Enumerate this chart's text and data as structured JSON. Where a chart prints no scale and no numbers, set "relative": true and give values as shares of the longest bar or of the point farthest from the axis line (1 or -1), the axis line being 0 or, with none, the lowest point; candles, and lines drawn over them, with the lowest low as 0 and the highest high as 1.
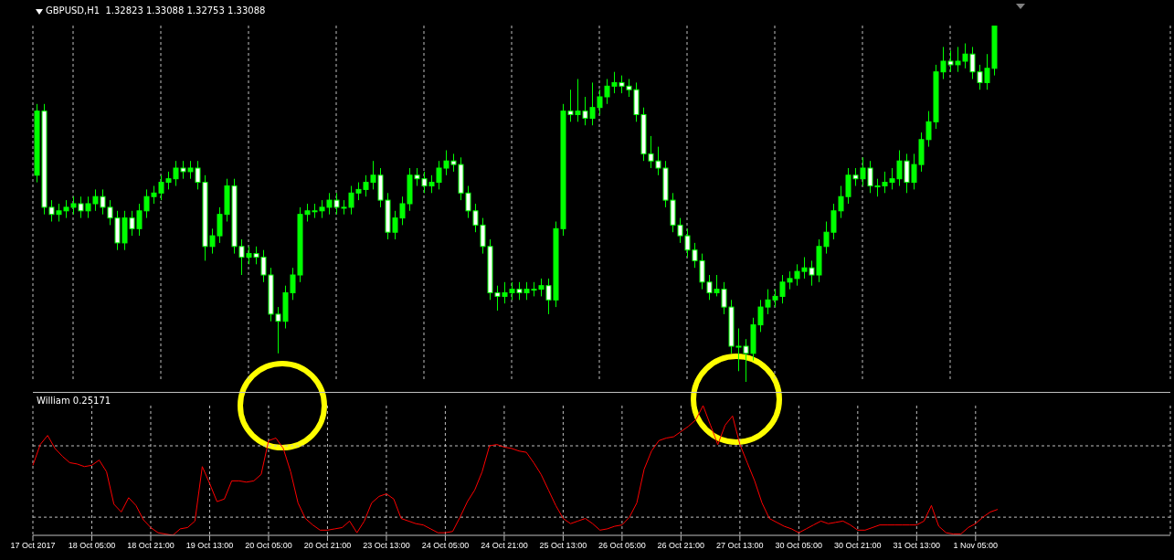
{
  "chart_data": [
    {
      "type": "candlestick",
      "title": "GBPUSD,H1  1.32823 1.33088 1.32753 1.33088",
      "relative": true,
      "grid": "x",
      "tick_labels": false,
      "color": "#00ff00",
      "categories": [
        null,
        null,
        null,
        null,
        null,
        null,
        null,
        null,
        null,
        null,
        null,
        null,
        null,
        null,
        null,
        null,
        null,
        null,
        null,
        null,
        null,
        null,
        null,
        null,
        null,
        null,
        null,
        null,
        null,
        null,
        null,
        null,
        null,
        null,
        null,
        null,
        null,
        null,
        null,
        null,
        null,
        null,
        null,
        null,
        null,
        null,
        null,
        null,
        null,
        null,
        null,
        null,
        null,
        null,
        null,
        null,
        null,
        null,
        null,
        null,
        null,
        null,
        null,
        null,
        null,
        null,
        null,
        null,
        null,
        null,
        null,
        null,
        null,
        null,
        null,
        null,
        null,
        null,
        null,
        null,
        null,
        null,
        null,
        null,
        null,
        null,
        null,
        null,
        null,
        null,
        null,
        null,
        null,
        null,
        null,
        null,
        null,
        null,
        null,
        null,
        null,
        null,
        null,
        null,
        null,
        null,
        null,
        null,
        null,
        null,
        null,
        null,
        null,
        null,
        null,
        null,
        null,
        null,
        null,
        null,
        null,
        null,
        null,
        null,
        null,
        null,
        null,
        null,
        null,
        null,
        null,
        null
      ],
      "ohlc": [
        [
          0.58,
          0.78,
          0.56,
          0.76
        ],
        [
          0.76,
          0.78,
          0.47,
          0.49
        ],
        [
          0.49,
          0.51,
          0.45,
          0.47
        ],
        [
          0.47,
          0.5,
          0.45,
          0.48
        ],
        [
          0.48,
          0.51,
          0.46,
          0.49
        ],
        [
          0.49,
          0.52,
          0.47,
          0.5
        ],
        [
          0.5,
          0.52,
          0.46,
          0.48
        ],
        [
          0.48,
          0.52,
          0.46,
          0.5
        ],
        [
          0.5,
          0.54,
          0.48,
          0.52
        ],
        [
          0.52,
          0.54,
          0.47,
          0.49
        ],
        [
          0.49,
          0.51,
          0.44,
          0.46
        ],
        [
          0.46,
          0.48,
          0.37,
          0.39
        ],
        [
          0.39,
          0.48,
          0.37,
          0.46
        ],
        [
          0.46,
          0.48,
          0.41,
          0.43
        ],
        [
          0.43,
          0.5,
          0.41,
          0.48
        ],
        [
          0.48,
          0.54,
          0.46,
          0.52
        ],
        [
          0.52,
          0.55,
          0.5,
          0.53
        ],
        [
          0.53,
          0.58,
          0.51,
          0.56
        ],
        [
          0.56,
          0.59,
          0.54,
          0.57
        ],
        [
          0.57,
          0.62,
          0.55,
          0.6
        ],
        [
          0.6,
          0.62,
          0.57,
          0.59
        ],
        [
          0.59,
          0.62,
          0.57,
          0.6
        ],
        [
          0.6,
          0.62,
          0.54,
          0.56
        ],
        [
          0.56,
          0.58,
          0.34,
          0.38
        ],
        [
          0.38,
          0.43,
          0.36,
          0.41
        ],
        [
          0.41,
          0.49,
          0.39,
          0.47
        ],
        [
          0.47,
          0.57,
          0.45,
          0.55
        ],
        [
          0.55,
          0.57,
          0.36,
          0.38
        ],
        [
          0.38,
          0.4,
          0.3,
          0.35
        ],
        [
          0.35,
          0.38,
          0.33,
          0.36
        ],
        [
          0.36,
          0.38,
          0.33,
          0.35
        ],
        [
          0.35,
          0.37,
          0.28,
          0.3
        ],
        [
          0.3,
          0.32,
          0.17,
          0.19
        ],
        [
          0.19,
          0.21,
          0.08,
          0.17
        ],
        [
          0.17,
          0.27,
          0.15,
          0.25
        ],
        [
          0.25,
          0.32,
          0.23,
          0.3
        ],
        [
          0.3,
          0.49,
          0.28,
          0.47
        ],
        [
          0.47,
          0.5,
          0.45,
          0.48
        ],
        [
          0.48,
          0.5,
          0.46,
          0.48
        ],
        [
          0.48,
          0.51,
          0.46,
          0.49
        ],
        [
          0.49,
          0.53,
          0.47,
          0.51
        ],
        [
          0.51,
          0.53,
          0.47,
          0.49
        ],
        [
          0.49,
          0.51,
          0.47,
          0.49
        ],
        [
          0.49,
          0.55,
          0.47,
          0.53
        ],
        [
          0.53,
          0.56,
          0.51,
          0.54
        ],
        [
          0.54,
          0.58,
          0.52,
          0.56
        ],
        [
          0.56,
          0.62,
          0.54,
          0.58
        ],
        [
          0.58,
          0.6,
          0.49,
          0.51
        ],
        [
          0.51,
          0.53,
          0.4,
          0.42
        ],
        [
          0.42,
          0.48,
          0.4,
          0.46
        ],
        [
          0.46,
          0.52,
          0.44,
          0.5
        ],
        [
          0.5,
          0.6,
          0.48,
          0.58
        ],
        [
          0.58,
          0.6,
          0.55,
          0.57
        ],
        [
          0.57,
          0.59,
          0.53,
          0.55
        ],
        [
          0.55,
          0.58,
          0.53,
          0.56
        ],
        [
          0.56,
          0.62,
          0.54,
          0.6
        ],
        [
          0.6,
          0.65,
          0.58,
          0.62
        ],
        [
          0.62,
          0.64,
          0.59,
          0.61
        ],
        [
          0.61,
          0.63,
          0.51,
          0.53
        ],
        [
          0.53,
          0.55,
          0.46,
          0.48
        ],
        [
          0.48,
          0.5,
          0.42,
          0.44
        ],
        [
          0.44,
          0.46,
          0.36,
          0.38
        ],
        [
          0.38,
          0.4,
          0.23,
          0.25
        ],
        [
          0.25,
          0.27,
          0.2,
          0.24
        ],
        [
          0.24,
          0.28,
          0.22,
          0.25
        ],
        [
          0.25,
          0.28,
          0.23,
          0.26
        ],
        [
          0.26,
          0.28,
          0.23,
          0.25
        ],
        [
          0.25,
          0.28,
          0.23,
          0.26
        ],
        [
          0.26,
          0.28,
          0.24,
          0.26
        ],
        [
          0.26,
          0.29,
          0.24,
          0.27
        ],
        [
          0.27,
          0.29,
          0.19,
          0.23
        ],
        [
          0.23,
          0.45,
          0.21,
          0.43
        ],
        [
          0.43,
          0.78,
          0.41,
          0.76
        ],
        [
          0.76,
          0.82,
          0.73,
          0.75
        ],
        [
          0.75,
          0.85,
          0.73,
          0.76
        ],
        [
          0.76,
          0.8,
          0.72,
          0.74
        ],
        [
          0.74,
          0.84,
          0.72,
          0.77
        ],
        [
          0.77,
          0.82,
          0.75,
          0.8
        ],
        [
          0.8,
          0.85,
          0.78,
          0.83
        ],
        [
          0.83,
          0.87,
          0.81,
          0.84
        ],
        [
          0.84,
          0.86,
          0.81,
          0.83
        ],
        [
          0.83,
          0.85,
          0.8,
          0.82
        ],
        [
          0.82,
          0.84,
          0.73,
          0.75
        ],
        [
          0.75,
          0.77,
          0.62,
          0.64
        ],
        [
          0.64,
          0.69,
          0.6,
          0.62
        ],
        [
          0.62,
          0.66,
          0.58,
          0.6
        ],
        [
          0.6,
          0.62,
          0.49,
          0.51
        ],
        [
          0.51,
          0.53,
          0.42,
          0.44
        ],
        [
          0.44,
          0.46,
          0.39,
          0.41
        ],
        [
          0.41,
          0.43,
          0.35,
          0.37
        ],
        [
          0.37,
          0.39,
          0.32,
          0.34
        ],
        [
          0.34,
          0.36,
          0.26,
          0.28
        ],
        [
          0.28,
          0.3,
          0.23,
          0.25
        ],
        [
          0.25,
          0.3,
          0.24,
          0.26
        ],
        [
          0.26,
          0.28,
          0.19,
          0.21
        ],
        [
          0.21,
          0.23,
          0.08,
          0.1
        ],
        [
          0.1,
          0.15,
          0.03,
          0.1
        ],
        [
          0.1,
          0.12,
          0.0,
          0.08
        ],
        [
          0.08,
          0.18,
          0.06,
          0.16
        ],
        [
          0.16,
          0.23,
          0.14,
          0.21
        ],
        [
          0.21,
          0.26,
          0.19,
          0.23
        ],
        [
          0.23,
          0.26,
          0.21,
          0.24
        ],
        [
          0.24,
          0.3,
          0.22,
          0.28
        ],
        [
          0.28,
          0.31,
          0.26,
          0.29
        ],
        [
          0.29,
          0.33,
          0.27,
          0.31
        ],
        [
          0.31,
          0.35,
          0.29,
          0.32
        ],
        [
          0.32,
          0.34,
          0.27,
          0.3
        ],
        [
          0.3,
          0.4,
          0.28,
          0.38
        ],
        [
          0.38,
          0.45,
          0.36,
          0.42
        ],
        [
          0.42,
          0.5,
          0.4,
          0.48
        ],
        [
          0.48,
          0.55,
          0.46,
          0.52
        ],
        [
          0.52,
          0.6,
          0.5,
          0.58
        ],
        [
          0.58,
          0.6,
          0.55,
          0.57
        ],
        [
          0.57,
          0.63,
          0.55,
          0.6
        ],
        [
          0.6,
          0.62,
          0.53,
          0.55
        ],
        [
          0.55,
          0.57,
          0.52,
          0.55
        ],
        [
          0.55,
          0.59,
          0.53,
          0.56
        ],
        [
          0.56,
          0.6,
          0.54,
          0.57
        ],
        [
          0.57,
          0.65,
          0.55,
          0.62
        ],
        [
          0.62,
          0.64,
          0.53,
          0.56
        ],
        [
          0.56,
          0.64,
          0.54,
          0.61
        ],
        [
          0.61,
          0.7,
          0.59,
          0.68
        ],
        [
          0.68,
          0.76,
          0.66,
          0.73
        ],
        [
          0.73,
          0.89,
          0.71,
          0.87
        ],
        [
          0.87,
          0.94,
          0.85,
          0.9
        ],
        [
          0.9,
          0.93,
          0.87,
          0.89
        ],
        [
          0.89,
          0.94,
          0.87,
          0.9
        ],
        [
          0.9,
          0.95,
          0.88,
          0.92
        ],
        [
          0.92,
          0.94,
          0.85,
          0.87
        ],
        [
          0.87,
          0.89,
          0.82,
          0.84
        ],
        [
          0.84,
          0.92,
          0.82,
          0.88
        ],
        [
          0.88,
          1.0,
          0.86,
          1.0
        ]
      ]
    },
    {
      "type": "line",
      "title": "William 0.25171",
      "relative": true,
      "grid": "x",
      "tick_labels": "x",
      "categories": [
        "17 Oct 2017",
        null,
        null,
        null,
        null,
        null,
        null,
        null,
        "18 Oct 05:00",
        null,
        null,
        null,
        null,
        null,
        null,
        null,
        "18 Oct 21:00",
        null,
        null,
        null,
        null,
        null,
        null,
        null,
        "19 Oct 13:00",
        null,
        null,
        null,
        null,
        null,
        null,
        null,
        "20 Oct 05:00",
        null,
        null,
        null,
        null,
        null,
        null,
        null,
        "20 Oct 21:00",
        null,
        null,
        null,
        null,
        null,
        null,
        null,
        "23 Oct 13:00",
        null,
        null,
        null,
        null,
        null,
        null,
        null,
        "24 Oct 05:00",
        null,
        null,
        null,
        null,
        null,
        null,
        null,
        "24 Oct 21:00",
        null,
        null,
        null,
        null,
        null,
        null,
        null,
        "25 Oct 13:00",
        null,
        null,
        null,
        null,
        null,
        null,
        null,
        "26 Oct 05:00",
        null,
        null,
        null,
        null,
        null,
        null,
        null,
        "26 Oct 21:00",
        null,
        null,
        null,
        null,
        null,
        null,
        null,
        "27 Oct 13:00",
        null,
        null,
        null,
        null,
        null,
        null,
        null,
        "30 Oct 05:00",
        null,
        null,
        null,
        null,
        null,
        null,
        null,
        "30 Oct 21:00",
        null,
        null,
        null,
        null,
        null,
        null,
        null,
        "31 Oct 13:00",
        null,
        null,
        null,
        null,
        null,
        null,
        null,
        "1 Nov 05:00",
        null,
        null,
        null
      ],
      "series": [
        {
          "color": "#ff0000",
          "values": [
            0.54,
            0.7,
            0.77,
            0.67,
            0.61,
            0.56,
            0.55,
            0.53,
            0.54,
            0.58,
            0.49,
            0.24,
            0.18,
            0.29,
            0.23,
            0.12,
            0.06,
            0.02,
            0.01,
            0,
            0.05,
            0.06,
            0.11,
            0.53,
            0.4,
            0.26,
            0.28,
            0.42,
            0.42,
            0.41,
            0.42,
            0.47,
            0.73,
            0.75,
            0.67,
            0.49,
            0.25,
            0.13,
            0.08,
            0.04,
            0.04,
            0.05,
            0.06,
            0.11,
            0.02,
            0.11,
            0.25,
            0.3,
            0.32,
            0.28,
            0.13,
            0.11,
            0.09,
            0.08,
            0.05,
            0.02,
            0.02,
            0.03,
            0.14,
            0.26,
            0.35,
            0.49,
            0.69,
            0.7,
            0.68,
            0.67,
            0.65,
            0.64,
            0.56,
            0.47,
            0.35,
            0.23,
            0.13,
            0.09,
            0.11,
            0.13,
            0.09,
            0.04,
            0.05,
            0.07,
            0.08,
            0.14,
            0.25,
            0.51,
            0.65,
            0.73,
            0.75,
            0.76,
            0.8,
            0.84,
            0.89,
            1.0,
            0.85,
            0.7,
            0.85,
            0.92,
            0.7,
            0.56,
            0.42,
            0.25,
            0.13,
            0.1,
            0.07,
            0.05,
            0.02,
            0.05,
            0.08,
            0.11,
            0.09,
            0.1,
            0.11,
            0.08,
            0.04,
            0.04,
            0.06,
            0.08,
            0.08,
            0.08,
            0.08,
            0.08,
            0.08,
            0.11,
            0.23,
            0.07,
            0.02,
            0.01,
            0.01,
            0.06,
            0.09,
            0.14,
            0.18,
            0.2
          ]
        }
      ],
      "ref_lines": [
        {
          "axis": "y",
          "value": 0.69,
          "color": "#c0c0c0",
          "line_style": "dashed"
        },
        {
          "axis": "y",
          "value": 0.14,
          "color": "#c0c0c0",
          "line_style": "dashed"
        }
      ]
    }
  ]
}
